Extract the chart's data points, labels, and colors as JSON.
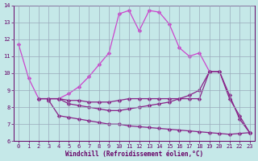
{
  "xlabel": "Windchill (Refroidissement éolien,°C)",
  "bg_color": "#c5e8e8",
  "lc_bright": "#cc44cc",
  "lc_dark": "#882288",
  "ylim": [
    6,
    14
  ],
  "xlim": [
    -0.5,
    23.5
  ],
  "yticks": [
    6,
    7,
    8,
    9,
    10,
    11,
    12,
    13,
    14
  ],
  "xticks": [
    0,
    1,
    2,
    3,
    4,
    5,
    6,
    7,
    8,
    9,
    10,
    11,
    12,
    13,
    14,
    15,
    16,
    17,
    18,
    19,
    20,
    21,
    22,
    23
  ],
  "grid_color": "#99aabb",
  "tick_color": "#660066",
  "curve1_x": [
    0,
    1,
    2,
    3,
    4,
    5,
    6,
    7,
    8,
    9,
    10,
    11,
    12,
    13,
    14,
    15,
    16,
    17,
    18,
    19
  ],
  "curve1_y": [
    11.7,
    9.7,
    8.5,
    8.5,
    8.5,
    8.8,
    9.2,
    9.8,
    10.5,
    11.2,
    13.5,
    13.7,
    12.5,
    13.7,
    13.6,
    12.9,
    11.5,
    11.0,
    11.2,
    10.1
  ],
  "curve2_x": [
    2,
    3,
    4,
    5,
    6,
    7,
    8,
    9,
    10,
    11,
    12,
    13,
    14,
    15,
    16,
    17,
    18,
    19,
    20,
    21,
    22,
    23
  ],
  "curve2_y": [
    8.5,
    8.5,
    8.5,
    8.4,
    8.4,
    8.3,
    8.3,
    8.3,
    8.4,
    8.5,
    8.5,
    8.5,
    8.5,
    8.5,
    8.5,
    8.5,
    8.5,
    10.1,
    10.1,
    8.5,
    7.5,
    6.5
  ],
  "curve3_x": [
    2,
    3,
    4,
    5,
    6,
    7,
    8,
    9,
    10,
    11,
    12,
    13,
    14,
    15,
    16,
    17,
    18,
    19,
    20,
    21,
    22,
    23
  ],
  "curve3_y": [
    8.5,
    8.5,
    8.5,
    8.2,
    8.1,
    8.0,
    7.9,
    7.8,
    7.8,
    7.9,
    8.0,
    8.1,
    8.2,
    8.3,
    8.5,
    8.7,
    9.0,
    10.1,
    10.1,
    8.7,
    7.3,
    6.5
  ],
  "curve4_x": [
    3,
    4,
    5,
    6,
    7,
    8,
    9,
    10,
    11,
    12,
    13,
    14,
    15,
    16,
    17,
    18,
    19,
    20,
    21,
    22,
    23
  ],
  "curve4_y": [
    8.4,
    7.5,
    7.4,
    7.3,
    7.2,
    7.1,
    7.0,
    7.0,
    6.9,
    6.85,
    6.8,
    6.75,
    6.7,
    6.65,
    6.6,
    6.55,
    6.5,
    6.45,
    6.4,
    6.45,
    6.5
  ]
}
